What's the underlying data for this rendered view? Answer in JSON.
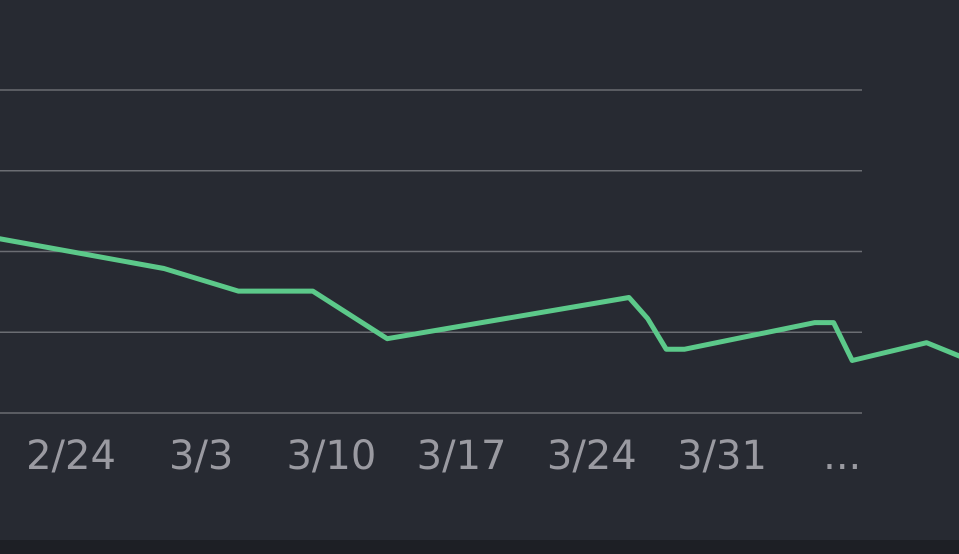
{
  "colors": {
    "background": "#272a32",
    "grid": "#6b6d73",
    "line": "#5cc98a",
    "tick_text": "#9a9aa1",
    "bottom_strip": "#1d1f25"
  },
  "chart_data": {
    "type": "line",
    "title": "",
    "xlabel": "",
    "ylabel": "",
    "grid": true,
    "legend": "none",
    "x_ticks": [
      "2/24",
      "3/3",
      "3/10",
      "3/17",
      "3/24",
      "3/31",
      "..."
    ],
    "ylim": [
      0,
      4
    ],
    "gridlines_y": [
      0,
      1,
      2,
      3,
      4
    ],
    "series": [
      {
        "name": "",
        "points": [
          {
            "x": "2/17",
            "y": 2.29
          },
          {
            "x": "3/1",
            "y": 1.79
          },
          {
            "x": "3/5",
            "y": 1.51
          },
          {
            "x": "3/9",
            "y": 1.51
          },
          {
            "x": "3/13",
            "y": 0.92
          },
          {
            "x": "3/26",
            "y": 1.43
          },
          {
            "x": "3/27",
            "y": 1.17
          },
          {
            "x": "3/28",
            "y": 0.79
          },
          {
            "x": "3/29",
            "y": 0.79
          },
          {
            "x": "4/5",
            "y": 1.12
          },
          {
            "x": "4/6",
            "y": 1.12
          },
          {
            "x": "4/7",
            "y": 0.65
          },
          {
            "x": "4/11",
            "y": 0.87
          },
          {
            "x": "4/14",
            "y": 0.59
          }
        ]
      }
    ]
  }
}
